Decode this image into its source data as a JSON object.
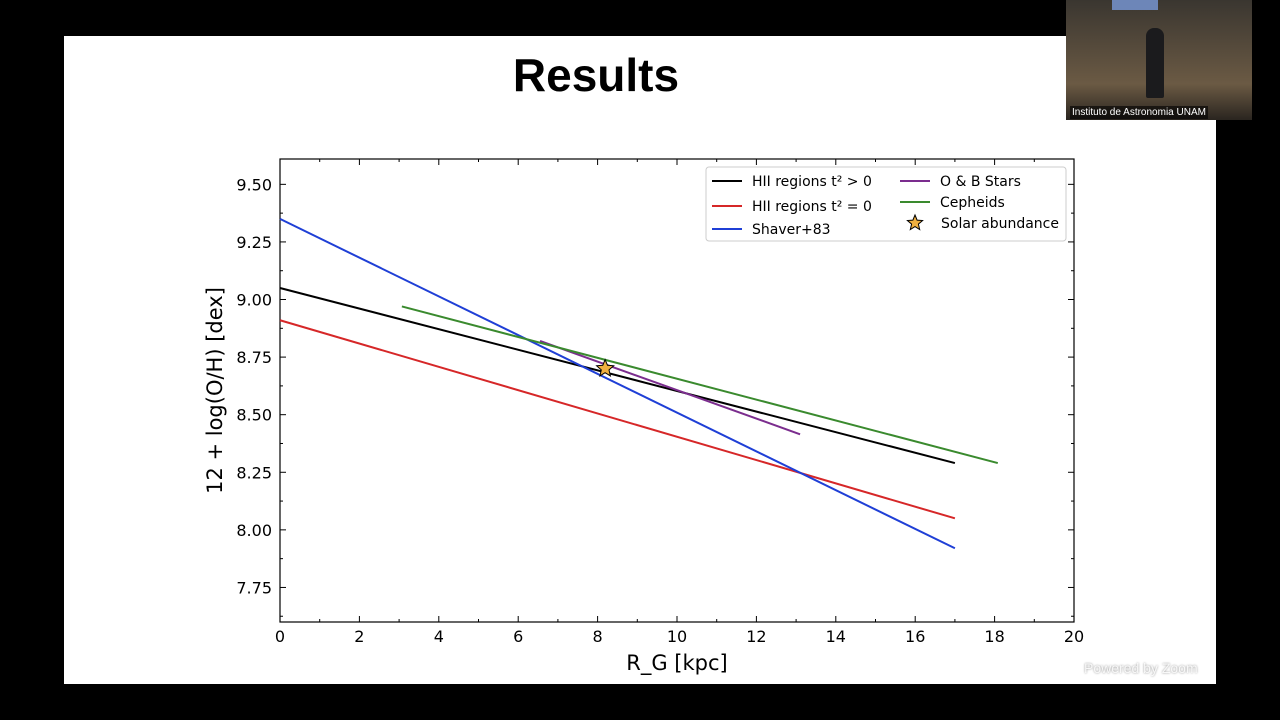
{
  "slide": {
    "title": "Results"
  },
  "video": {
    "label": "Instituto de Astronomia UNAM"
  },
  "zoom": {
    "powered_by": "Powered by Zoom"
  },
  "chart_data": {
    "type": "line",
    "title": "",
    "xlabel": "R_G [kpc]",
    "ylabel": "12 + log(O/H) [dex]",
    "xlim": [
      0,
      20
    ],
    "ylim": [
      7.6,
      9.61
    ],
    "xticks": [
      0,
      2,
      4,
      6,
      8,
      10,
      12,
      14,
      16,
      18,
      20
    ],
    "yticks": [
      7.75,
      8.0,
      8.25,
      8.5,
      8.75,
      9.0,
      9.25,
      9.5
    ],
    "ytick_labels": [
      "7.75",
      "8.00",
      "8.25",
      "8.50",
      "8.75",
      "9.00",
      "9.25",
      "9.50"
    ],
    "grid": false,
    "legend_placement": "top-right",
    "series": [
      {
        "name": "HII regions t² > 0",
        "color": "#000000",
        "x": [
          0,
          17
        ],
        "y": [
          9.05,
          8.29
        ]
      },
      {
        "name": "HII regions t² = 0",
        "color": "#d62728",
        "x": [
          0,
          17
        ],
        "y": [
          8.91,
          8.05
        ]
      },
      {
        "name": "Shaver+83",
        "color": "#1f3fd6",
        "x": [
          0,
          17
        ],
        "y": [
          9.35,
          7.92
        ]
      },
      {
        "name": "O & B Stars",
        "color": "#7b2d8e",
        "x": [
          6.55,
          13.1
        ],
        "y": [
          8.82,
          8.415
        ]
      },
      {
        "name": "Cepheids",
        "color": "#3a8a2e",
        "x": [
          3.07,
          18.08
        ],
        "y": [
          8.97,
          8.29
        ]
      }
    ],
    "markers": [
      {
        "name": "Solar abundance",
        "marker": "star",
        "color": "#f0b040",
        "x": 8.19,
        "y": 8.7
      }
    ]
  }
}
